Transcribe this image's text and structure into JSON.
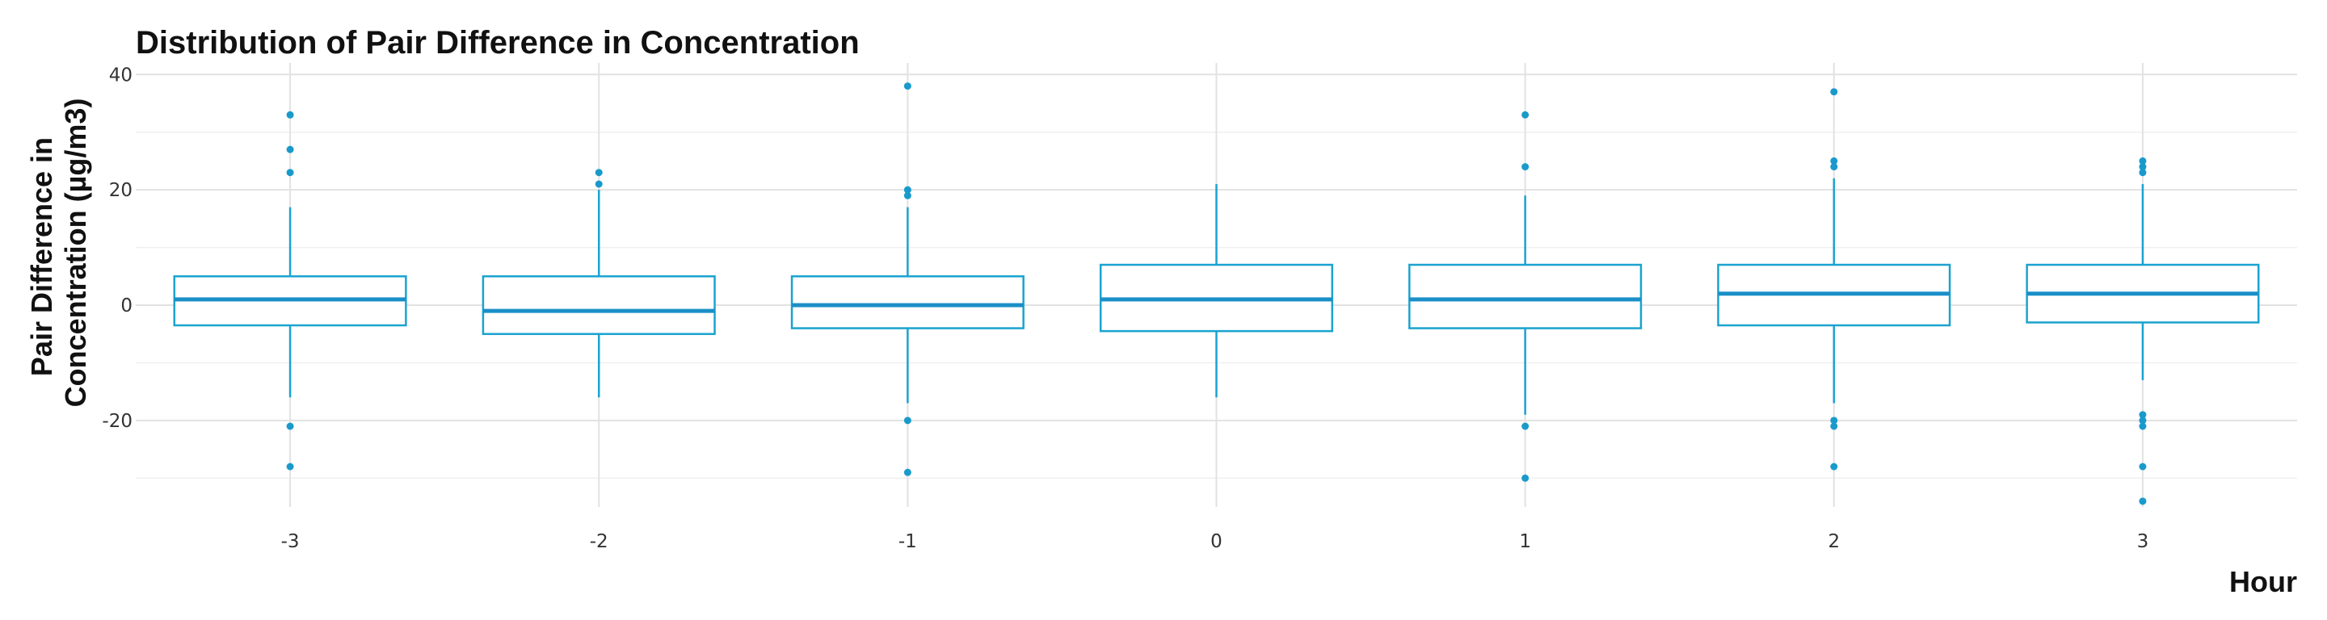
{
  "chart_data": {
    "type": "boxplot",
    "title": "Distribution of Pair Difference in Concentration",
    "xlabel": "Hour",
    "ylabel_lines": [
      "Pair Difference in",
      "Concentration (µg/m3)"
    ],
    "ylim": [
      -35,
      42
    ],
    "y_ticks": [
      -20,
      0,
      20,
      40
    ],
    "y_minor_ticks": [
      -30,
      -10,
      10,
      30
    ],
    "grid": true,
    "color": "#1aa3cf",
    "categories": [
      "-3",
      "-2",
      "-1",
      "0",
      "1",
      "2",
      "3"
    ],
    "boxes": [
      {
        "category": "-3",
        "whisker_low": -16,
        "q1": -3.5,
        "median": 1,
        "q3": 5,
        "whisker_high": 17,
        "outliers": [
          33,
          27,
          23,
          -21,
          -28
        ]
      },
      {
        "category": "-2",
        "whisker_low": -16,
        "q1": -5,
        "median": -1,
        "q3": 5,
        "whisker_high": 20,
        "outliers": [
          23,
          21
        ]
      },
      {
        "category": "-1",
        "whisker_low": -17,
        "q1": -4,
        "median": 0,
        "q3": 5,
        "whisker_high": 17,
        "outliers": [
          38,
          20,
          19,
          -20,
          -29
        ]
      },
      {
        "category": "0",
        "whisker_low": -16,
        "q1": -4.5,
        "median": 1,
        "q3": 7,
        "whisker_high": 21,
        "outliers": []
      },
      {
        "category": "1",
        "whisker_low": -19,
        "q1": -4,
        "median": 1,
        "q3": 7,
        "whisker_high": 19,
        "outliers": [
          33,
          24,
          -21,
          -30
        ]
      },
      {
        "category": "2",
        "whisker_low": -17,
        "q1": -3.5,
        "median": 2,
        "q3": 7,
        "whisker_high": 22,
        "outliers": [
          37,
          25,
          24,
          -20,
          -21,
          -28
        ]
      },
      {
        "category": "3",
        "whisker_low": -13,
        "q1": -3,
        "median": 2,
        "q3": 7,
        "whisker_high": 21,
        "outliers": [
          25,
          24,
          23,
          -19,
          -20,
          -21,
          -28,
          -34
        ]
      }
    ]
  }
}
